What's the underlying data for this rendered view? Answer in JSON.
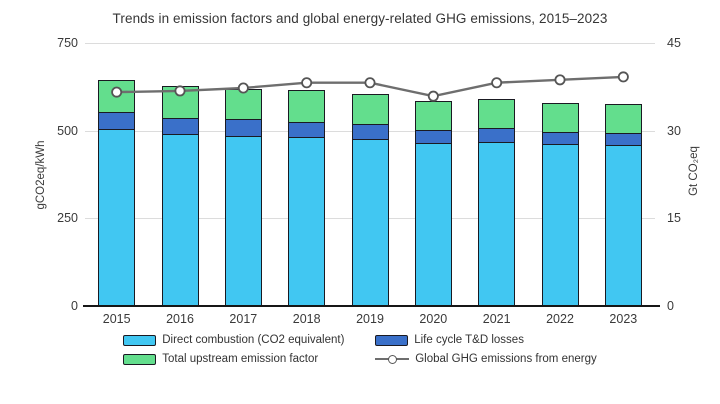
{
  "title": "Trends in emission factors and global energy-related GHG emissions, 2015–2023",
  "axes": {
    "left": {
      "label": "gCO2eq/kWh",
      "tick_labels": [
        "0",
        "250",
        "500",
        "750"
      ]
    },
    "right": {
      "label": "Gt CO₂eq",
      "tick_labels": [
        "0",
        "15",
        "30",
        "45"
      ]
    }
  },
  "colors": {
    "direct_combustion": "#41C7F2",
    "td_losses": "#3A70C9",
    "upstream": "#63DE8D",
    "ghg_line": "#6E6E6E",
    "marker_fill": "#FFFFFF",
    "marker_stroke": "#555555",
    "gridline": "#DCDCDC",
    "bar_border": "#1A1A22"
  },
  "chart_data": {
    "type": "bar",
    "stacked": true,
    "grid": "horizontal",
    "legend_position": "bottom",
    "categories": [
      "2015",
      "2016",
      "2017",
      "2018",
      "2019",
      "2020",
      "2021",
      "2022",
      "2023"
    ],
    "ylim_left": [
      0,
      750
    ],
    "ylim_right": [
      0,
      45
    ],
    "yticks_left": [
      0,
      250,
      500,
      750
    ],
    "yticks_right": [
      0,
      15,
      30,
      45
    ],
    "ylabel_left": "gCO2eq/kWh",
    "ylabel_right": "Gt CO₂eq",
    "series": [
      {
        "name": "Direct combustion (CO2 equivalent)",
        "type": "bar",
        "axis": "left",
        "color": "#41C7F2",
        "values": [
          505,
          490,
          486,
          482,
          476,
          465,
          468,
          462,
          459
        ]
      },
      {
        "name": "Life cycle T&D losses",
        "type": "bar",
        "axis": "left",
        "color": "#3A70C9",
        "values": [
          52,
          50,
          50,
          47,
          46,
          40,
          42,
          37,
          37
        ]
      },
      {
        "name": "Total upstream emission factor",
        "type": "bar",
        "axis": "left",
        "color": "#63DE8D",
        "values": [
          93,
          93,
          90,
          93,
          88,
          85,
          86,
          86,
          86
        ]
      },
      {
        "name": "Global GHG emissions from energy",
        "type": "line",
        "axis": "right",
        "color": "#6E6E6E",
        "values": [
          36.6,
          36.8,
          37.3,
          38.2,
          38.2,
          35.9,
          38.2,
          38.7,
          39.2
        ]
      }
    ],
    "bar_totals": [
      650,
      633,
      626,
      622,
      610,
      590,
      596,
      585,
      582
    ]
  }
}
